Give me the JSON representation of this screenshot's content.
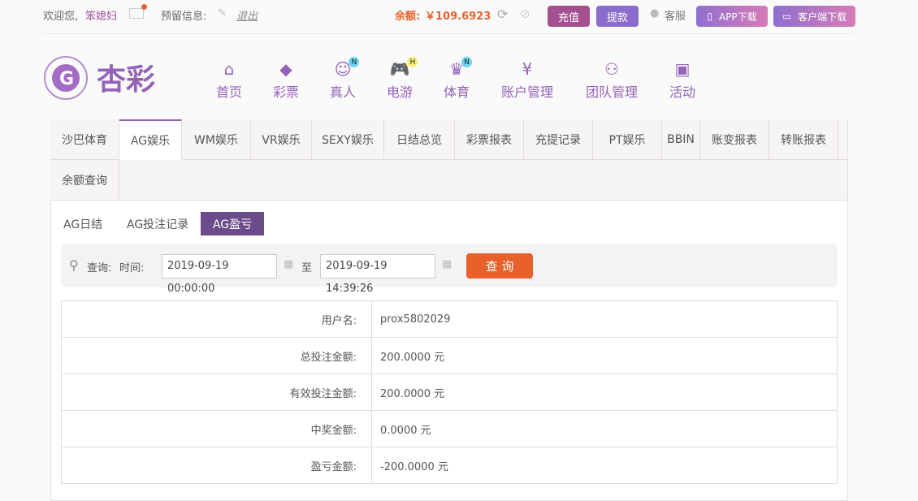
{
  "topbar": {
    "welcome": "欢迎您,",
    "username": "笨媳妇",
    "reserved_label": "预留信息:",
    "logout": "退出",
    "balance_label": "余额:",
    "balance_value": "￥109.6923",
    "recharge": "充值",
    "withdraw": "提款",
    "service": "客服",
    "app_download": "APP下载",
    "client_download": "客户端下载"
  },
  "logo": {
    "text": "杏彩"
  },
  "nav": [
    {
      "label": "首页",
      "icon": "home-icon"
    },
    {
      "label": "彩票",
      "icon": "ticket-icon"
    },
    {
      "label": "真人",
      "icon": "live-dealer-icon",
      "badge": "N"
    },
    {
      "label": "电游",
      "icon": "gamepad-icon",
      "badge": "H"
    },
    {
      "label": "体育",
      "icon": "trophy-icon",
      "badge": "N"
    },
    {
      "label": "账户管理",
      "icon": "yuan-coin-icon"
    },
    {
      "label": "团队管理",
      "icon": "team-icon"
    },
    {
      "label": "活动",
      "icon": "gift-icon"
    }
  ],
  "tabs": [
    "沙巴体育",
    "AG娱乐",
    "WM娱乐",
    "VR娱乐",
    "SEXY娱乐",
    "日结总览",
    "彩票报表",
    "充提记录",
    "PT娱乐",
    "BBIN",
    "账变报表",
    "转账报表",
    "余额查询"
  ],
  "active_tab": "AG娱乐",
  "subtabs": [
    "AG日结",
    "AG投注记录",
    "AG盈亏"
  ],
  "active_subtab": "AG盈亏",
  "query": {
    "label": "查询:",
    "time_label": "时间:",
    "start": "2019-09-19 00:00:00",
    "to": "至",
    "end": "2019-09-19 14:39:26",
    "button": "查 询"
  },
  "rows": [
    {
      "label": "用户名:",
      "value": "prox5802029"
    },
    {
      "label": "总投注金额:",
      "value": "200.0000 元"
    },
    {
      "label": "有效投注金额:",
      "value": "200.0000 元"
    },
    {
      "label": "中奖金额:",
      "value": "0.0000 元"
    },
    {
      "label": "盈亏金额:",
      "value": "-200.0000 元"
    }
  ],
  "colors": {
    "brand": "#9463b8",
    "balance": "#e8632c",
    "active_subtab": "#6b4c8a",
    "query_button": "#e8602a"
  }
}
